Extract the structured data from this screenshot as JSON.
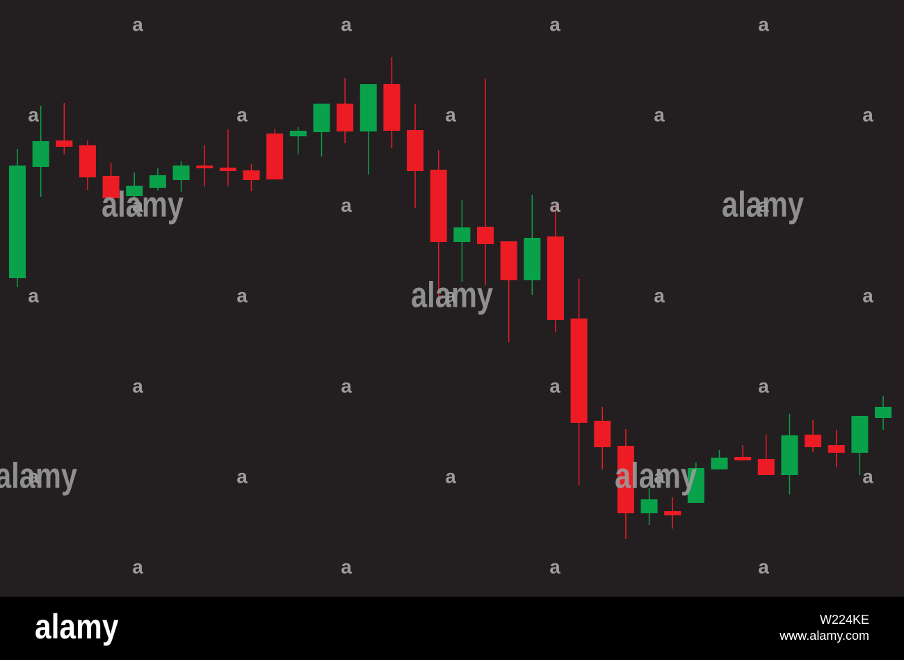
{
  "chart_data": {
    "type": "candlestick",
    "open": [
      460,
      620,
      658,
      651,
      607,
      578,
      590,
      601,
      622,
      619,
      615,
      668,
      664,
      670,
      711,
      671,
      739,
      673,
      616,
      512,
      534,
      513,
      457,
      520,
      402,
      255,
      219,
      122,
      125,
      137,
      185,
      203,
      200,
      177,
      235,
      220,
      209,
      259
    ],
    "high": [
      646,
      708,
      712,
      658,
      626,
      612,
      618,
      628,
      651,
      674,
      624,
      674,
      677,
      711,
      748,
      739,
      778,
      711,
      644,
      573,
      747,
      513,
      580,
      567,
      459,
      275,
      243,
      158,
      145,
      195,
      213,
      220,
      235,
      265,
      256,
      242,
      262,
      291
    ],
    "low": [
      447,
      577,
      638,
      587,
      570,
      575,
      586,
      584,
      592,
      592,
      585,
      602,
      638,
      635,
      654,
      609,
      647,
      561,
      420,
      455,
      450,
      368,
      436,
      382,
      162,
      185,
      85,
      105,
      100,
      137,
      185,
      198,
      177,
      149,
      210,
      188,
      177,
      242
    ],
    "close": [
      622,
      657,
      649,
      605,
      575,
      593,
      608,
      622,
      618,
      614,
      601,
      602,
      672,
      711,
      671,
      739,
      672,
      614,
      512,
      533,
      509,
      457,
      518,
      400,
      252,
      217,
      122,
      142,
      119,
      187,
      202,
      198,
      177,
      234,
      217,
      209,
      262,
      275
    ],
    "up_color": "#0aa14b",
    "down_color": "#ed1c24",
    "ylim": [
      0,
      860
    ]
  },
  "watermark": {
    "logo": "alamy",
    "mark": "a"
  },
  "footer": {
    "logo": "alamy",
    "image_id": "W224KE",
    "url": "www.alamy.com"
  }
}
